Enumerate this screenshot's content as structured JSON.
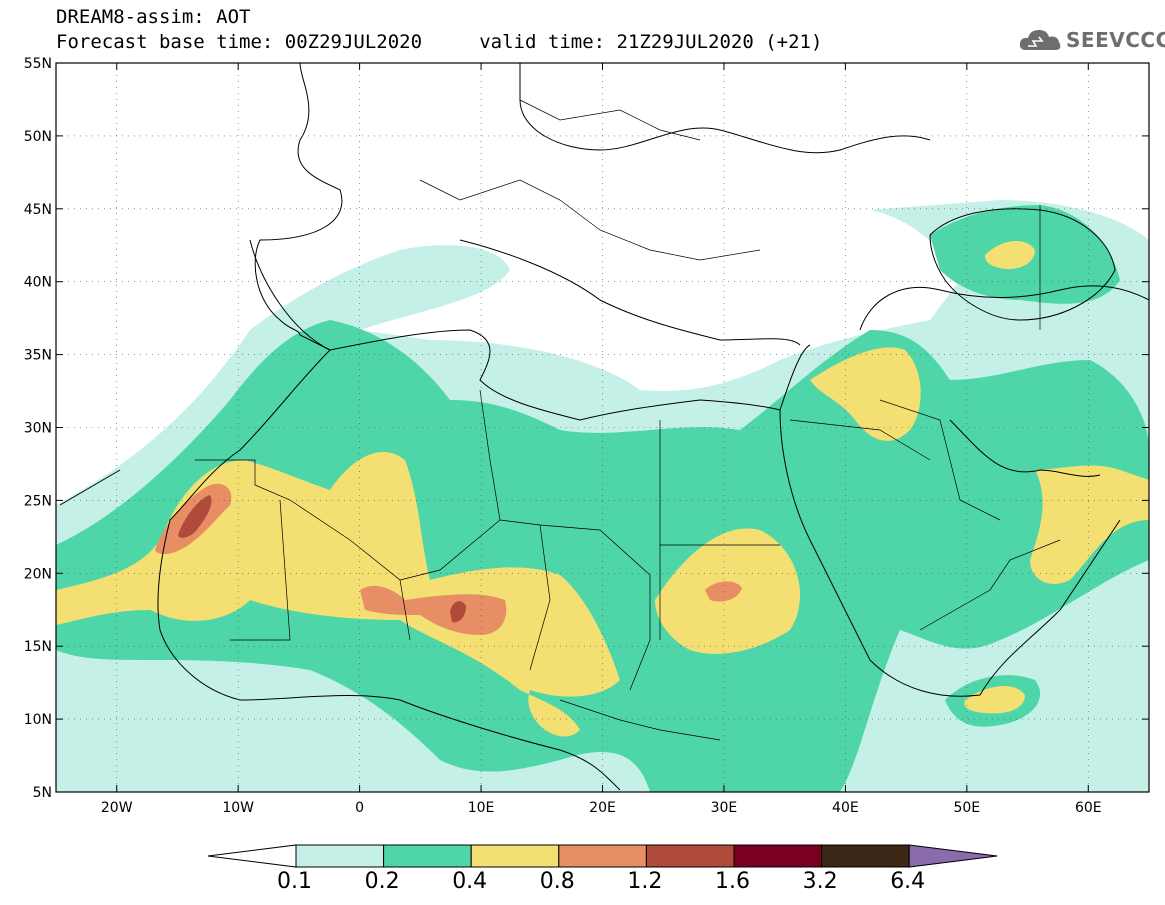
{
  "title": {
    "line1": "DREAM8-assim: AOT",
    "line2": "Forecast base time: 00Z29JUL2020     valid time: 21Z29JUL2020 (+21)"
  },
  "logo": {
    "text": "SEEVCCC",
    "icon": "cloud-icon",
    "color": "#6e6e6e"
  },
  "map": {
    "lon_range": [
      -25,
      65
    ],
    "lat_range": [
      5,
      55
    ],
    "lon_ticks": [
      {
        "value": -20,
        "label": "20W"
      },
      {
        "value": -10,
        "label": "10W"
      },
      {
        "value": 0,
        "label": "0"
      },
      {
        "value": 10,
        "label": "10E"
      },
      {
        "value": 20,
        "label": "20E"
      },
      {
        "value": 30,
        "label": "30E"
      },
      {
        "value": 40,
        "label": "40E"
      },
      {
        "value": 50,
        "label": "50E"
      },
      {
        "value": 60,
        "label": "60E"
      }
    ],
    "lat_ticks": [
      {
        "value": 55,
        "label": "55N"
      },
      {
        "value": 50,
        "label": "50N"
      },
      {
        "value": 45,
        "label": "45N"
      },
      {
        "value": 40,
        "label": "40N"
      },
      {
        "value": 35,
        "label": "35N"
      },
      {
        "value": 30,
        "label": "30N"
      },
      {
        "value": 25,
        "label": "25N"
      },
      {
        "value": 20,
        "label": "20N"
      },
      {
        "value": 15,
        "label": "15N"
      },
      {
        "value": 10,
        "label": "10N"
      },
      {
        "value": 5,
        "label": "5N"
      }
    ]
  },
  "colorbar": {
    "levels": [
      "0.1",
      "0.2",
      "0.4",
      "0.8",
      "1.2",
      "1.6",
      "3.2",
      "6.4"
    ],
    "colors": [
      "#ffffff",
      "#c4f0e8",
      "#4fd6a8",
      "#f4df72",
      "#e88e64",
      "#b04a3a",
      "#7a0020",
      "#3c2616",
      "#8b6bac"
    ]
  }
}
